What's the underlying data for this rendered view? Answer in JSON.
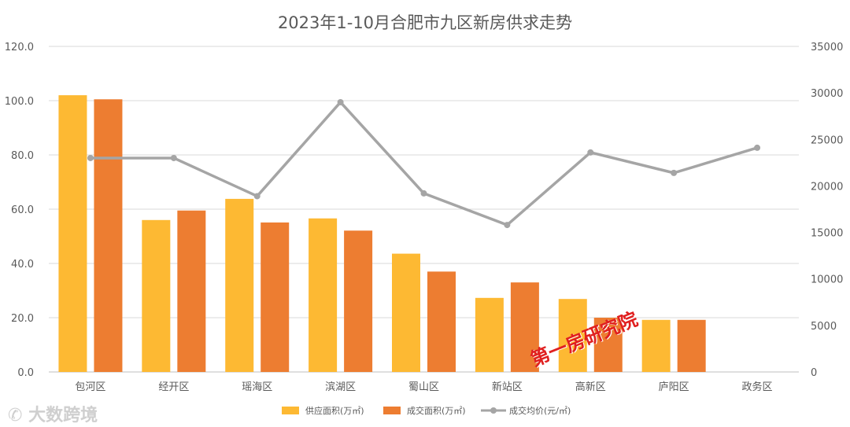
{
  "chart_data": {
    "type": "bar",
    "title": "2023年1-10月合肥市九区新房供求走势",
    "categories": [
      "包河区",
      "经开区",
      "瑶海区",
      "滨湖区",
      "蜀山区",
      "新站区",
      "高新区",
      "庐阳区",
      "政务区"
    ],
    "series": [
      {
        "name": "供应面积(万㎡)",
        "type": "bar",
        "axis": "left",
        "color": "#FDB933",
        "values": [
          102.0,
          56.0,
          63.8,
          56.6,
          43.6,
          27.3,
          26.9,
          19.2,
          null
        ]
      },
      {
        "name": "成交面积(万㎡)",
        "type": "bar",
        "axis": "left",
        "color": "#ED7D31",
        "values": [
          100.5,
          59.5,
          55.1,
          52.1,
          37.0,
          33.0,
          20.0,
          19.2,
          null
        ]
      },
      {
        "name": "成交均价(元/㎡)",
        "type": "line",
        "axis": "right",
        "color": "#A5A5A5",
        "values": [
          23000,
          23000,
          18900,
          29000,
          19200,
          15800,
          23600,
          21400,
          24100
        ]
      }
    ],
    "left_axis": {
      "min": 0,
      "max": 120,
      "step": 20,
      "tick_labels": [
        "0.0",
        "20.0",
        "40.0",
        "60.0",
        "80.0",
        "100.0",
        "120.0"
      ]
    },
    "right_axis": {
      "min": 0,
      "max": 35000,
      "step": 5000,
      "tick_labels": [
        "0",
        "5000",
        "10000",
        "15000",
        "20000",
        "25000",
        "30000",
        "35000"
      ]
    },
    "grid": true,
    "legend_position": "bottom"
  },
  "watermarks": {
    "brand": "大数跨境",
    "stamp": "第一房研究院"
  }
}
